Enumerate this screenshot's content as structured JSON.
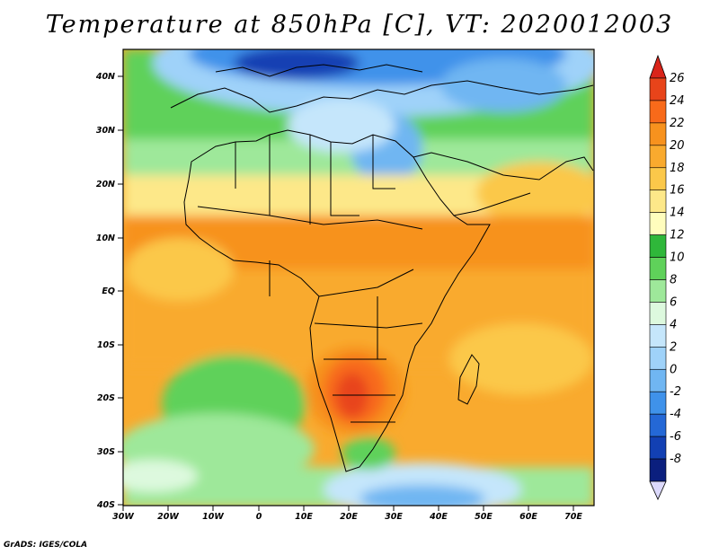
{
  "title": "Temperature at 850hPa [C], VT: 2020012003",
  "credit": "GrADS: IGES/COLA",
  "lon_labels": [
    "30W",
    "20W",
    "10W",
    "0",
    "10E",
    "20E",
    "30E",
    "40E",
    "50E",
    "60E",
    "70E"
  ],
  "lat_labels": [
    "40N",
    "30N",
    "20N",
    "10N",
    "EQ",
    "10S",
    "20S",
    "30S",
    "40S"
  ],
  "colorbar": {
    "levels": [
      "26",
      "24",
      "22",
      "20",
      "18",
      "16",
      "14",
      "12",
      "10",
      "8",
      "6",
      "4",
      "2",
      "0",
      "-2",
      "-4",
      "-6",
      "-8"
    ],
    "colors": [
      "#e8441a",
      "#f86a1a",
      "#f7921e",
      "#f9aa2e",
      "#fbc84a",
      "#fde889",
      "#fffdbd",
      "#2fb73a",
      "#5fd15a",
      "#9ee89a",
      "#ddf9de",
      "#c5e6fb",
      "#9fd2f9",
      "#70b6f2",
      "#3f92ea",
      "#2468d6",
      "#1240b3",
      "#0b1f7e"
    ],
    "top_arrow_color": "#d9241a",
    "bottom_arrow_color": "#dcd9fb"
  },
  "field_colors": {
    "very_cold": "#0b1f7e",
    "cold_deep": "#1240b3",
    "cold": "#3f92ea",
    "cool": "#9fd2f9",
    "mild": "#ddf9de",
    "green_light": "#9ee89a",
    "green": "#5fd15a",
    "green_deep": "#2fb73a",
    "pale": "#fffdbd",
    "yellow": "#fde889",
    "gold": "#fbc84a",
    "orange_light": "#f9aa2e",
    "orange": "#f7921e",
    "hot": "#f86a1a",
    "very_hot": "#e8441a"
  }
}
